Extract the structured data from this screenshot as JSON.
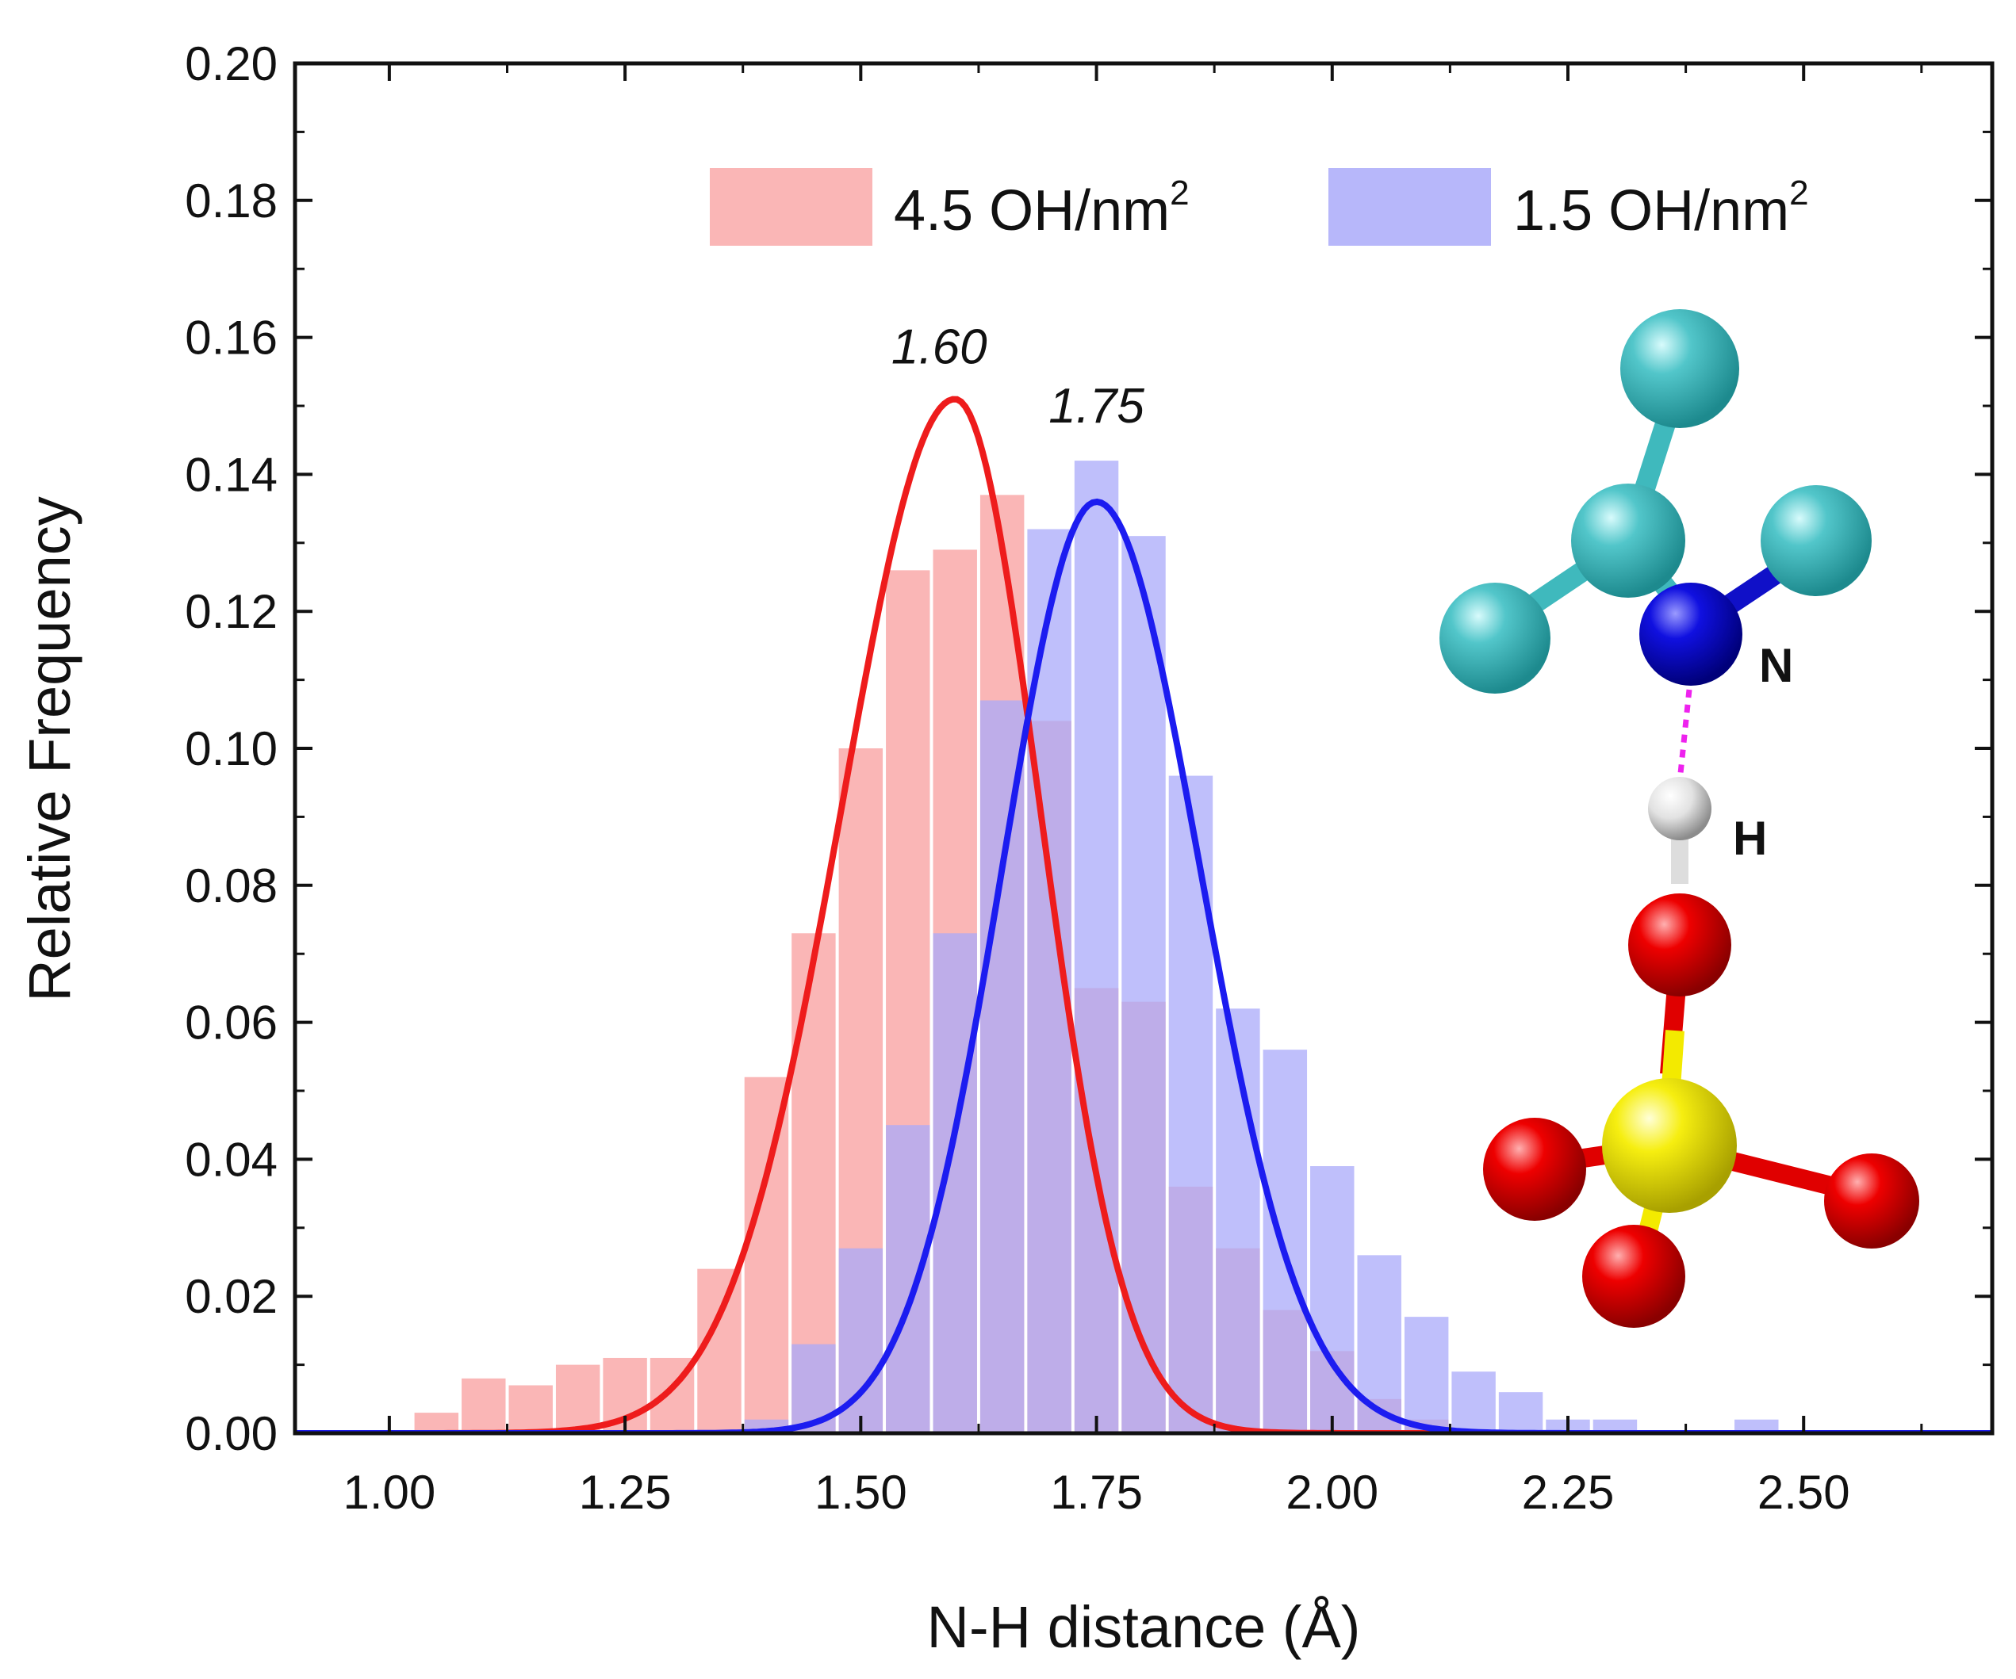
{
  "chart_data": {
    "type": "bar",
    "title": "",
    "xlabel": "N-H distance (Å)",
    "ylabel": "Relative Frequency",
    "xlim": [
      0.9,
      2.7
    ],
    "ylim": [
      0,
      0.2
    ],
    "xticks": [
      "1.00",
      "1.25",
      "1.50",
      "1.75",
      "2.00",
      "2.25",
      "2.50"
    ],
    "xtick_values": [
      1.0,
      1.25,
      1.5,
      1.75,
      2.0,
      2.25,
      2.5
    ],
    "yticks": [
      "0.00",
      "0.02",
      "0.04",
      "0.06",
      "0.08",
      "0.10",
      "0.12",
      "0.14",
      "0.16",
      "0.18",
      "0.20"
    ],
    "ytick_values": [
      0.0,
      0.02,
      0.04,
      0.06,
      0.08,
      0.1,
      0.12,
      0.14,
      0.16,
      0.18,
      0.2
    ],
    "bin_width": 0.05,
    "series": [
      {
        "name": "4.5 OH/nm",
        "superscript": "2",
        "color": "#f9a9a9",
        "fit_color": "#ee1c1c",
        "peak": 1.6,
        "peak_label": "1.60",
        "fit_peak_height": 0.151,
        "fit_sigma_left": 0.12,
        "fit_sigma_right": 0.09,
        "bins": [
          {
            "x": 1.05,
            "y": 0.003
          },
          {
            "x": 1.1,
            "y": 0.008
          },
          {
            "x": 1.15,
            "y": 0.007
          },
          {
            "x": 1.2,
            "y": 0.01
          },
          {
            "x": 1.25,
            "y": 0.011
          },
          {
            "x": 1.3,
            "y": 0.011
          },
          {
            "x": 1.35,
            "y": 0.024
          },
          {
            "x": 1.4,
            "y": 0.052
          },
          {
            "x": 1.45,
            "y": 0.073
          },
          {
            "x": 1.5,
            "y": 0.1
          },
          {
            "x": 1.55,
            "y": 0.126
          },
          {
            "x": 1.6,
            "y": 0.129
          },
          {
            "x": 1.65,
            "y": 0.137
          },
          {
            "x": 1.7,
            "y": 0.104
          },
          {
            "x": 1.75,
            "y": 0.065
          },
          {
            "x": 1.8,
            "y": 0.063
          },
          {
            "x": 1.85,
            "y": 0.036
          },
          {
            "x": 1.9,
            "y": 0.027
          },
          {
            "x": 1.95,
            "y": 0.018
          },
          {
            "x": 2.0,
            "y": 0.012
          },
          {
            "x": 2.05,
            "y": 0.005
          },
          {
            "x": 2.1,
            "y": 0.002
          }
        ]
      },
      {
        "name": "1.5 OH/nm",
        "superscript": "2",
        "color": "#aaaaf9",
        "fit_color": "#1c1cf0",
        "peak": 1.75,
        "peak_label": "1.75",
        "fit_peak_height": 0.136,
        "fit_sigma_left": 0.1,
        "fit_sigma_right": 0.11,
        "bins": [
          {
            "x": 1.4,
            "y": 0.002
          },
          {
            "x": 1.45,
            "y": 0.013
          },
          {
            "x": 1.5,
            "y": 0.027
          },
          {
            "x": 1.55,
            "y": 0.045
          },
          {
            "x": 1.6,
            "y": 0.073
          },
          {
            "x": 1.65,
            "y": 0.107
          },
          {
            "x": 1.7,
            "y": 0.132
          },
          {
            "x": 1.75,
            "y": 0.142
          },
          {
            "x": 1.8,
            "y": 0.131
          },
          {
            "x": 1.85,
            "y": 0.096
          },
          {
            "x": 1.9,
            "y": 0.062
          },
          {
            "x": 1.95,
            "y": 0.056
          },
          {
            "x": 2.0,
            "y": 0.039
          },
          {
            "x": 2.05,
            "y": 0.026
          },
          {
            "x": 2.1,
            "y": 0.017
          },
          {
            "x": 2.15,
            "y": 0.009
          },
          {
            "x": 2.2,
            "y": 0.006
          },
          {
            "x": 2.25,
            "y": 0.002
          },
          {
            "x": 2.3,
            "y": 0.002
          },
          {
            "x": 2.45,
            "y": 0.002
          }
        ]
      }
    ],
    "inset": {
      "description_labels": [
        "N",
        "H"
      ],
      "colors": {
        "carbon": "#3fb9bd",
        "nitrogen": "#0b0bd6",
        "hydrogen": "#e6e6e6",
        "oxygen": "#e00000",
        "sulfur": "#f3ea00",
        "hbond": "#ee22ee"
      }
    }
  }
}
